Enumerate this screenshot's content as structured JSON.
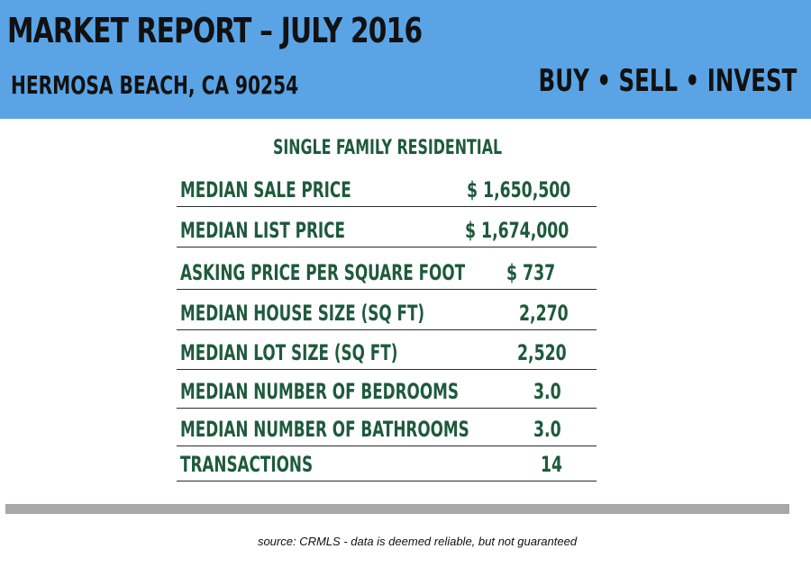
{
  "header": {
    "title": "Market Report – July  2016",
    "location": "Hermosa Beach, CA 90254",
    "tagline": "Buy • Sell • Invest",
    "background_color": "#5aa4e6"
  },
  "section": {
    "subtitle": "Single Family Residential"
  },
  "rows": [
    {
      "label": "Median Sale Price",
      "value": "$ 1,650,500"
    },
    {
      "label": "Median List Price",
      "value": "$  1,674,000"
    },
    {
      "label": "Asking Price Per Square Foot",
      "value": "$   737"
    },
    {
      "label": "Median House Size (Sq Ft)",
      "value": "2,270"
    },
    {
      "label": "Median Lot Size (Sq Ft)",
      "value": "2,520"
    },
    {
      "label": "Median Number of Bedrooms",
      "value": "3.0"
    },
    {
      "label": "Median Number of Bathrooms",
      "value": "3.0"
    },
    {
      "label": "Transactions",
      "value": "14"
    }
  ],
  "footer": {
    "source": "source:  CRMLS - data is deemed reliable, but not guaranteed"
  },
  "colors": {
    "text_green": "#1e5a3c",
    "divider_gray": "#a8a8a8"
  }
}
